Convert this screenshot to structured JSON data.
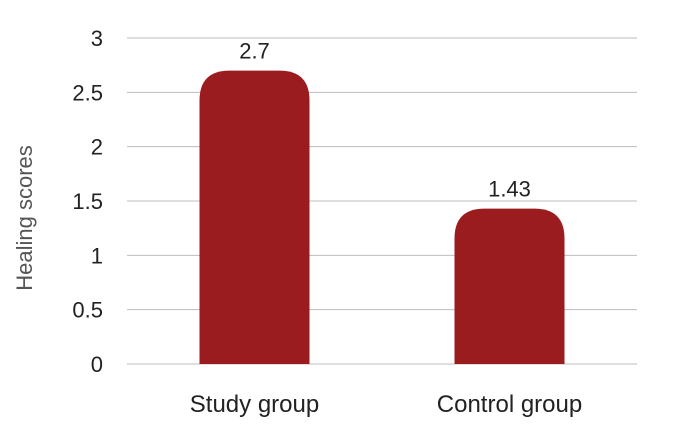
{
  "chart_data": {
    "type": "bar",
    "categories": [
      "Study group",
      "Control group"
    ],
    "values": [
      2.7,
      1.43
    ],
    "data_labels": [
      "2.7",
      "1.43"
    ],
    "title": "",
    "xlabel": "",
    "ylabel": "Healing scores",
    "ylim": [
      0,
      3
    ],
    "yticks": [
      0,
      0.5,
      1,
      1.5,
      2,
      2.5,
      3
    ],
    "ytick_labels": [
      "0",
      "0.5",
      "1",
      "1.5",
      "2",
      "2.5",
      "3"
    ],
    "grid": true,
    "bar_color": "#9b1c1f",
    "grid_color": "#bdbdbd"
  }
}
